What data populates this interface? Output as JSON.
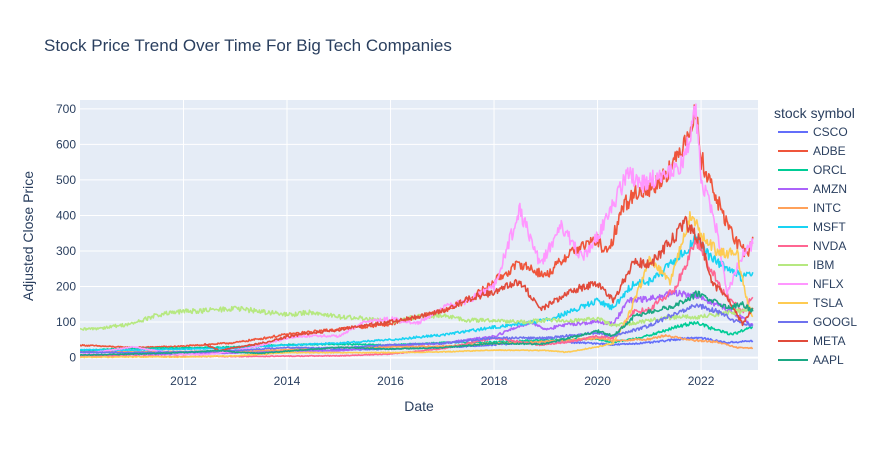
{
  "chart_data": {
    "type": "line",
    "title": "Stock Price Trend Over Time For Big Tech Companies",
    "xlabel": "Date",
    "ylabel": "Adjusted Close Price",
    "x_range": [
      2010.0,
      2023.1
    ],
    "x_ticks": [
      2012,
      2014,
      2016,
      2018,
      2020,
      2022
    ],
    "ylim": [
      -35,
      725
    ],
    "y_ticks": [
      0,
      100,
      200,
      300,
      400,
      500,
      600,
      700
    ],
    "grid": true,
    "legend_title": "stock symbol",
    "legend_position": "right",
    "series": [
      {
        "name": "CSCO",
        "color": "#636efa",
        "points": [
          [
            2010,
            18
          ],
          [
            2011,
            15
          ],
          [
            2012,
            13
          ],
          [
            2013,
            16
          ],
          [
            2014,
            19
          ],
          [
            2015,
            22
          ],
          [
            2016,
            24
          ],
          [
            2017,
            28
          ],
          [
            2018,
            36
          ],
          [
            2019,
            45
          ],
          [
            2020,
            40
          ],
          [
            2020.3,
            36
          ],
          [
            2021,
            42
          ],
          [
            2021.8,
            56
          ],
          [
            2022,
            55
          ],
          [
            2022.5,
            42
          ],
          [
            2023,
            47
          ]
        ]
      },
      {
        "name": "ADBE",
        "color": "#EF553B",
        "points": [
          [
            2010,
            35
          ],
          [
            2011,
            28
          ],
          [
            2012,
            32
          ],
          [
            2013,
            42
          ],
          [
            2014,
            65
          ],
          [
            2015,
            80
          ],
          [
            2016,
            95
          ],
          [
            2017,
            130
          ],
          [
            2017.6,
            170
          ],
          [
            2018,
            215
          ],
          [
            2018.5,
            265
          ],
          [
            2019,
            230
          ],
          [
            2019.5,
            300
          ],
          [
            2020,
            330
          ],
          [
            2020.2,
            290
          ],
          [
            2020.5,
            430
          ],
          [
            2020.8,
            470
          ],
          [
            2021,
            470
          ],
          [
            2021.5,
            550
          ],
          [
            2021.9,
            690
          ],
          [
            2022,
            560
          ],
          [
            2022.4,
            410
          ],
          [
            2022.7,
            320
          ],
          [
            2022.9,
            290
          ],
          [
            2023,
            340
          ]
        ]
      },
      {
        "name": "ORCL",
        "color": "#00cc96",
        "points": [
          [
            2010,
            20
          ],
          [
            2011,
            26
          ],
          [
            2012,
            27
          ],
          [
            2013,
            30
          ],
          [
            2014,
            36
          ],
          [
            2015,
            38
          ],
          [
            2016,
            35
          ],
          [
            2017,
            42
          ],
          [
            2018,
            43
          ],
          [
            2019,
            50
          ],
          [
            2020,
            52
          ],
          [
            2020.3,
            42
          ],
          [
            2021,
            62
          ],
          [
            2021.5,
            85
          ],
          [
            2021.9,
            100
          ],
          [
            2022.2,
            82
          ],
          [
            2022.6,
            65
          ],
          [
            2023,
            85
          ]
        ]
      },
      {
        "name": "AMZN",
        "color": "#ab63fa",
        "points": [
          [
            2010,
            7
          ],
          [
            2011,
            9
          ],
          [
            2012,
            10
          ],
          [
            2013,
            13
          ],
          [
            2014,
            18
          ],
          [
            2015,
            19
          ],
          [
            2016,
            32
          ],
          [
            2017,
            40
          ],
          [
            2018,
            60
          ],
          [
            2018.7,
            100
          ],
          [
            2019,
            80
          ],
          [
            2019.5,
            95
          ],
          [
            2020,
            100
          ],
          [
            2020.3,
            95
          ],
          [
            2020.6,
            160
          ],
          [
            2021,
            165
          ],
          [
            2021.5,
            180
          ],
          [
            2021.9,
            175
          ],
          [
            2022.3,
            150
          ],
          [
            2022.7,
            120
          ],
          [
            2023,
            90
          ]
        ]
      },
      {
        "name": "INTC",
        "color": "#FFA15A",
        "points": [
          [
            2010,
            15
          ],
          [
            2011,
            16
          ],
          [
            2012,
            17
          ],
          [
            2013,
            18
          ],
          [
            2014,
            22
          ],
          [
            2015,
            28
          ],
          [
            2016,
            30
          ],
          [
            2017,
            32
          ],
          [
            2018,
            40
          ],
          [
            2019,
            45
          ],
          [
            2020,
            55
          ],
          [
            2020.3,
            48
          ],
          [
            2021,
            52
          ],
          [
            2021.3,
            62
          ],
          [
            2021.9,
            48
          ],
          [
            2022.3,
            44
          ],
          [
            2022.7,
            28
          ],
          [
            2023,
            27
          ]
        ]
      },
      {
        "name": "MSFT",
        "color": "#19d3f3",
        "points": [
          [
            2010,
            22
          ],
          [
            2011,
            21
          ],
          [
            2012,
            24
          ],
          [
            2013,
            27
          ],
          [
            2014,
            35
          ],
          [
            2015,
            41
          ],
          [
            2016,
            50
          ],
          [
            2017,
            64
          ],
          [
            2018,
            85
          ],
          [
            2019,
            105
          ],
          [
            2019.5,
            130
          ],
          [
            2020,
            160
          ],
          [
            2020.3,
            140
          ],
          [
            2020.7,
            210
          ],
          [
            2021,
            215
          ],
          [
            2021.5,
            270
          ],
          [
            2021.9,
            335
          ],
          [
            2022,
            310
          ],
          [
            2022.4,
            260
          ],
          [
            2022.8,
            225
          ],
          [
            2023,
            240
          ]
        ]
      },
      {
        "name": "NVDA",
        "color": "#FF6692",
        "points": [
          [
            2010,
            4
          ],
          [
            2011,
            4
          ],
          [
            2012,
            3
          ],
          [
            2013,
            3
          ],
          [
            2014,
            4
          ],
          [
            2015,
            5
          ],
          [
            2016,
            10
          ],
          [
            2017,
            25
          ],
          [
            2018,
            55
          ],
          [
            2018.9,
            35
          ],
          [
            2019.5,
            45
          ],
          [
            2020,
            60
          ],
          [
            2020.3,
            55
          ],
          [
            2020.7,
            130
          ],
          [
            2021,
            135
          ],
          [
            2021.5,
            195
          ],
          [
            2021.9,
            330
          ],
          [
            2022,
            300
          ],
          [
            2022.4,
            190
          ],
          [
            2022.8,
            130
          ],
          [
            2023,
            170
          ]
        ]
      },
      {
        "name": "IBM",
        "color": "#B6E880",
        "points": [
          [
            2010,
            78
          ],
          [
            2010.5,
            85
          ],
          [
            2011,
            95
          ],
          [
            2011.5,
            120
          ],
          [
            2012,
            130
          ],
          [
            2012.5,
            133
          ],
          [
            2013,
            138
          ],
          [
            2013.5,
            130
          ],
          [
            2014,
            120
          ],
          [
            2014.5,
            128
          ],
          [
            2015,
            115
          ],
          [
            2015.5,
            110
          ],
          [
            2016,
            100
          ],
          [
            2016.5,
            115
          ],
          [
            2017,
            118
          ],
          [
            2017.5,
            105
          ],
          [
            2018,
            105
          ],
          [
            2018.5,
            100
          ],
          [
            2019,
            105
          ],
          [
            2019.5,
            105
          ],
          [
            2020,
            110
          ],
          [
            2020.3,
            90
          ],
          [
            2020.8,
            100
          ],
          [
            2021,
            105
          ],
          [
            2021.5,
            115
          ],
          [
            2022,
            115
          ],
          [
            2022.5,
            125
          ],
          [
            2023,
            135
          ]
        ]
      },
      {
        "name": "NFLX",
        "color": "#FF97FF",
        "points": [
          [
            2010,
            8
          ],
          [
            2011,
            30
          ],
          [
            2011.9,
            10
          ],
          [
            2012.5,
            9
          ],
          [
            2013,
            20
          ],
          [
            2013.5,
            35
          ],
          [
            2014,
            55
          ],
          [
            2014.5,
            62
          ],
          [
            2015,
            60
          ],
          [
            2015.5,
            100
          ],
          [
            2016,
            110
          ],
          [
            2016.5,
            95
          ],
          [
            2017,
            140
          ],
          [
            2017.5,
            160
          ],
          [
            2018,
            200
          ],
          [
            2018.5,
            415
          ],
          [
            2018.9,
            260
          ],
          [
            2019.3,
            370
          ],
          [
            2019.7,
            280
          ],
          [
            2020,
            340
          ],
          [
            2020.3,
            430
          ],
          [
            2020.6,
            520
          ],
          [
            2020.9,
            490
          ],
          [
            2021.3,
            520
          ],
          [
            2021.6,
            530
          ],
          [
            2021.9,
            690
          ],
          [
            2022,
            510
          ],
          [
            2022.3,
            360
          ],
          [
            2022.5,
            180
          ],
          [
            2022.8,
            290
          ],
          [
            2023,
            320
          ]
        ]
      },
      {
        "name": "TSLA",
        "color": "#FECB52",
        "points": [
          [
            2010,
            1
          ],
          [
            2011,
            2
          ],
          [
            2012,
            2
          ],
          [
            2013,
            5
          ],
          [
            2014,
            14
          ],
          [
            2015,
            14
          ],
          [
            2016,
            14
          ],
          [
            2017,
            16
          ],
          [
            2018,
            21
          ],
          [
            2019,
            20
          ],
          [
            2019.4,
            15
          ],
          [
            2019.9,
            28
          ],
          [
            2020,
            30
          ],
          [
            2020.3,
            40
          ],
          [
            2020.6,
            120
          ],
          [
            2020.9,
            230
          ],
          [
            2021,
            280
          ],
          [
            2021.4,
            210
          ],
          [
            2021.8,
            400
          ],
          [
            2022,
            350
          ],
          [
            2022.3,
            300
          ],
          [
            2022.7,
            290
          ],
          [
            2022.9,
            150
          ],
          [
            2023,
            115
          ]
        ]
      },
      {
        "name": "GOOGL",
        "color": "#6f72ee",
        "points": [
          [
            2010,
            15
          ],
          [
            2011,
            14
          ],
          [
            2012,
            16
          ],
          [
            2013,
            20
          ],
          [
            2014,
            28
          ],
          [
            2015,
            27
          ],
          [
            2016,
            36
          ],
          [
            2017,
            40
          ],
          [
            2018,
            55
          ],
          [
            2019,
            55
          ],
          [
            2020,
            70
          ],
          [
            2020.3,
            60
          ],
          [
            2021,
            90
          ],
          [
            2021.5,
            125
          ],
          [
            2021.9,
            148
          ],
          [
            2022.3,
            130
          ],
          [
            2022.7,
            100
          ],
          [
            2023,
            90
          ]
        ]
      },
      {
        "name": "META",
        "color": "#e14b3b",
        "points": [
          [
            2012.4,
            38
          ],
          [
            2012.7,
            20
          ],
          [
            2013,
            28
          ],
          [
            2013.5,
            40
          ],
          [
            2014,
            58
          ],
          [
            2014.5,
            70
          ],
          [
            2015,
            78
          ],
          [
            2015.5,
            90
          ],
          [
            2016,
            100
          ],
          [
            2016.5,
            115
          ],
          [
            2017,
            130
          ],
          [
            2017.5,
            165
          ],
          [
            2018,
            185
          ],
          [
            2018.5,
            215
          ],
          [
            2018.9,
            135
          ],
          [
            2019.5,
            190
          ],
          [
            2020,
            210
          ],
          [
            2020.3,
            160
          ],
          [
            2020.7,
            270
          ],
          [
            2021,
            260
          ],
          [
            2021.5,
            340
          ],
          [
            2021.7,
            380
          ],
          [
            2022,
            330
          ],
          [
            2022.2,
            210
          ],
          [
            2022.5,
            170
          ],
          [
            2022.8,
            95
          ],
          [
            2023,
            140
          ]
        ]
      },
      {
        "name": "AAPL",
        "color": "#1aa884",
        "points": [
          [
            2010,
            7
          ],
          [
            2011,
            10
          ],
          [
            2012,
            14
          ],
          [
            2012.7,
            20
          ],
          [
            2013,
            15
          ],
          [
            2013.5,
            12
          ],
          [
            2014,
            18
          ],
          [
            2015,
            29
          ],
          [
            2016,
            24
          ],
          [
            2017,
            28
          ],
          [
            2018,
            40
          ],
          [
            2018.9,
            38
          ],
          [
            2019,
            40
          ],
          [
            2019.9,
            70
          ],
          [
            2020,
            75
          ],
          [
            2020.3,
            60
          ],
          [
            2020.7,
            115
          ],
          [
            2021,
            130
          ],
          [
            2021.5,
            145
          ],
          [
            2021.9,
            178
          ],
          [
            2022,
            175
          ],
          [
            2022.5,
            140
          ],
          [
            2022.8,
            150
          ],
          [
            2023,
            130
          ]
        ]
      }
    ]
  }
}
